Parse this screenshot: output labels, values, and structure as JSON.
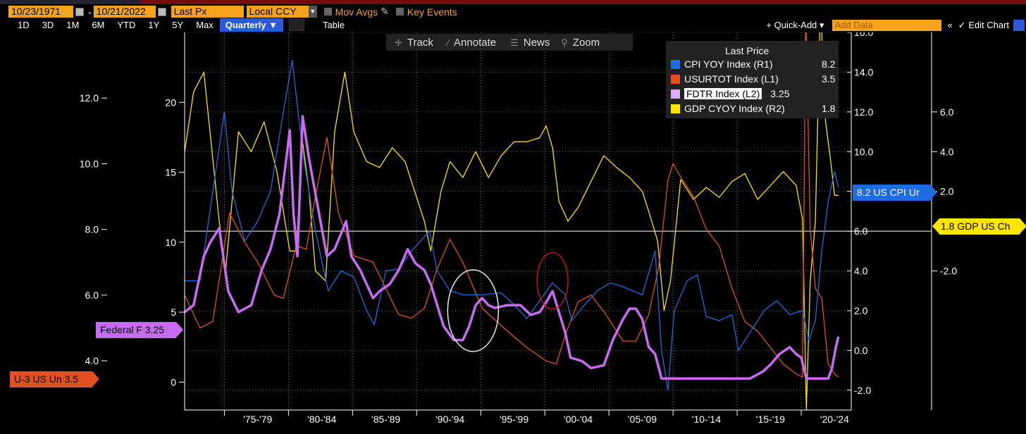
{
  "toolbar_top": {
    "start_date": "10/23/1971",
    "end_date": "10/21/2022",
    "field": "Last Px",
    "currency": "Local CCY",
    "mov_avgs": "Mov Avgs",
    "key_events": "Key Events"
  },
  "ranges": [
    "1D",
    "3D",
    "1M",
    "6M",
    "YTD",
    "1Y",
    "5Y",
    "Max"
  ],
  "period": "Quarterly",
  "table_label": "Table",
  "quick_add": "+ Quick-Add",
  "add_data_placeholder": "Add Data",
  "edit_chart": "Edit Chart",
  "chart_tools": [
    "Track",
    "Annotate",
    "News",
    "Zoom"
  ],
  "legend": {
    "title": "Last Price",
    "items": [
      {
        "name": "CPI YOY Index  (R1)",
        "value": "8.2",
        "color": "#1f6be0"
      },
      {
        "name": "USURTOT Index  (L1)",
        "value": "3.5",
        "color": "#e25022"
      },
      {
        "name": "FDTR Index  (L2)",
        "value": "3.25",
        "color": "#d9aef5"
      },
      {
        "name": "GDP CYOY Index  (R2)",
        "value": "1.8",
        "color": "#ffe500"
      }
    ]
  },
  "tags": {
    "cpi": "8.2 US CPI Ur",
    "gdp": "1.8 GDP US Ch",
    "fed": "Federal F 3.25",
    "unemp": "U-3 US Un 3.5"
  },
  "chart_data": {
    "type": "line",
    "x_ticks": [
      "'75-'79",
      "'80-'84",
      "'85-'89",
      "'90-'94",
      "'95-'99",
      "'00-'04",
      "'05-'09",
      "'10-'14",
      "'15-'19",
      "'20-'24"
    ],
    "axes": {
      "L1": {
        "ticks": [
          "12.0",
          "10.0",
          "8.0",
          "6.0",
          "4.0"
        ],
        "range": [
          2.5,
          14.0
        ]
      },
      "L2": {
        "ticks": [
          "20",
          "15",
          "10",
          "5",
          "0"
        ],
        "range": [
          -2.0,
          25.0
        ]
      },
      "R1": {
        "ticks": [
          "16.0",
          "14.0",
          "12.0",
          "10.0",
          "8.0",
          "6.0",
          "4.0",
          "2.0",
          "0.0",
          "-2.0"
        ],
        "range": [
          -3.0,
          16.0
        ]
      },
      "R2": {
        "ticks": [
          "6.0",
          "4.0",
          "2.0",
          "-2.0"
        ],
        "range": [
          -9.0,
          10.0
        ]
      }
    },
    "series": [
      {
        "name": "FDTR Index (L2)",
        "axis": "L2",
        "color": "#c76cf0",
        "x": [
          1971.8,
          1972.5,
          1973.3,
          1973.8,
          1974.5,
          1975.2,
          1976.0,
          1977.0,
          1977.8,
          1978.5,
          1979.2,
          1980.0,
          1980.3,
          1980.6,
          1981.0,
          1981.5,
          1981.9,
          1982.3,
          1982.9,
          1983.5,
          1984.4,
          1984.8,
          1985.5,
          1986.5,
          1987.0,
          1987.8,
          1988.5,
          1989.2,
          1989.8,
          1990.5,
          1991.0,
          1991.5,
          1992.0,
          1992.8,
          1993.5,
          1994.0,
          1994.5,
          1995.0,
          1995.5,
          1996.0,
          1997.0,
          1998.0,
          1998.8,
          1999.5,
          2000.0,
          2000.5,
          2001.0,
          2001.5,
          2001.9,
          2002.8,
          2003.5,
          2004.5,
          2005.2,
          2006.0,
          2006.5,
          2007.0,
          2007.5,
          2008.0,
          2008.5,
          2009.0,
          2010.0,
          2012.0,
          2014.0,
          2015.9,
          2016.9,
          2017.5,
          2018.2,
          2019.0,
          2019.5,
          2019.9,
          2020.1,
          2020.3,
          2021.0,
          2022.0,
          2022.3,
          2022.6,
          2022.8
        ],
        "y": [
          5.0,
          5.5,
          9.0,
          10.0,
          11.0,
          6.5,
          5.0,
          5.5,
          8.0,
          9.5,
          12.0,
          18.0,
          12.0,
          9.0,
          19.0,
          16.0,
          14.0,
          12.0,
          9.0,
          9.5,
          11.5,
          9.0,
          8.0,
          6.0,
          6.5,
          7.0,
          8.0,
          9.5,
          8.5,
          8.0,
          7.0,
          5.5,
          4.0,
          3.0,
          3.0,
          4.0,
          5.5,
          6.0,
          5.5,
          5.3,
          5.5,
          5.5,
          4.8,
          5.0,
          5.7,
          6.5,
          5.0,
          3.5,
          1.75,
          1.5,
          1.0,
          1.2,
          3.0,
          4.5,
          5.25,
          5.25,
          4.5,
          2.5,
          2.0,
          0.25,
          0.25,
          0.25,
          0.25,
          0.25,
          0.75,
          1.25,
          2.0,
          2.5,
          2.0,
          1.75,
          1.0,
          0.25,
          0.25,
          0.25,
          1.0,
          2.5,
          3.25
        ]
      },
      {
        "name": "USURTOT Index (L1)",
        "axis": "L1",
        "color": "#e25022",
        "x": [
          1971.8,
          1973.0,
          1974.0,
          1975.3,
          1976.5,
          1977.5,
          1978.8,
          1979.5,
          1980.5,
          1981.3,
          1982.0,
          1982.9,
          1983.8,
          1985.0,
          1986.5,
          1988.5,
          1989.5,
          1990.5,
          1991.5,
          1992.5,
          1993.5,
          1995.0,
          1997.0,
          1998.5,
          2000.0,
          2000.8,
          2001.5,
          2002.5,
          2003.5,
          2004.5,
          2006.0,
          2007.0,
          2008.0,
          2008.8,
          2009.5,
          2009.9,
          2010.5,
          2011.5,
          2012.5,
          2013.5,
          2014.5,
          2015.5,
          2016.5,
          2017.5,
          2018.5,
          2019.5,
          2020.0,
          2020.25,
          2020.4,
          2020.6,
          2021.0,
          2021.5,
          2022.0,
          2022.5,
          2022.8
        ],
        "y": [
          6.0,
          5.0,
          5.2,
          8.5,
          7.6,
          7.0,
          6.0,
          5.9,
          7.5,
          7.4,
          9.0,
          10.8,
          8.5,
          7.2,
          7.0,
          5.4,
          5.3,
          5.6,
          6.8,
          7.7,
          7.0,
          5.6,
          4.9,
          4.4,
          4.0,
          3.9,
          4.8,
          5.8,
          6.0,
          5.5,
          4.6,
          4.6,
          5.4,
          6.9,
          9.5,
          10.0,
          9.6,
          9.0,
          8.0,
          7.5,
          6.2,
          5.2,
          4.9,
          4.4,
          3.9,
          3.6,
          3.5,
          14.7,
          12.0,
          8.0,
          6.2,
          5.9,
          3.9,
          3.6,
          3.5
        ]
      },
      {
        "name": "CPI YOY Index (R1)",
        "axis": "R1",
        "color": "#1f6be0",
        "x": [
          1971.8,
          1973.0,
          1974.0,
          1974.9,
          1975.5,
          1976.5,
          1977.5,
          1978.5,
          1979.5,
          1980.2,
          1981.0,
          1982.0,
          1983.0,
          1984.0,
          1985.0,
          1986.0,
          1986.6,
          1987.5,
          1988.5,
          1989.5,
          1990.9,
          1991.5,
          1992.5,
          1993.5,
          1995.0,
          1996.5,
          1997.5,
          1998.5,
          1999.5,
          2000.5,
          2001.5,
          2002.0,
          2003.0,
          2004.0,
          2005.0,
          2006.0,
          2007.5,
          2008.5,
          2009.0,
          2009.5,
          2010.0,
          2011.0,
          2011.8,
          2012.5,
          2013.5,
          2014.5,
          2015.0,
          2016.0,
          2017.0,
          2018.0,
          2019.0,
          2020.0,
          2020.5,
          2021.0,
          2021.5,
          2022.0,
          2022.5,
          2022.8
        ],
        "y": [
          3.5,
          3.5,
          8.0,
          12.0,
          8.0,
          5.5,
          6.5,
          8.0,
          12.0,
          14.6,
          10.0,
          6.0,
          3.0,
          4.0,
          3.7,
          2.0,
          1.3,
          4.0,
          4.1,
          5.0,
          6.0,
          4.0,
          3.0,
          2.8,
          2.8,
          2.9,
          2.3,
          1.6,
          2.5,
          3.4,
          2.8,
          1.5,
          2.3,
          3.0,
          3.4,
          3.2,
          2.8,
          5.0,
          0.0,
          -2.0,
          2.0,
          3.5,
          3.8,
          1.7,
          1.5,
          1.8,
          0.0,
          1.0,
          2.0,
          2.5,
          1.8,
          2.0,
          0.5,
          1.5,
          5.0,
          7.5,
          9.0,
          8.2
        ]
      },
      {
        "name": "GDP CYOY Index (R2)",
        "axis": "R2",
        "color": "#ffe500",
        "x": [
          1971.8,
          1972.5,
          1973.3,
          1974.5,
          1975.0,
          1976.0,
          1977.0,
          1978.0,
          1979.0,
          1980.0,
          1980.5,
          1981.0,
          1981.5,
          1982.0,
          1982.8,
          1983.5,
          1984.3,
          1985.0,
          1986.0,
          1987.0,
          1988.0,
          1989.0,
          1990.0,
          1990.5,
          1991.0,
          1991.8,
          1992.5,
          1993.5,
          1994.5,
          1995.5,
          1996.5,
          1997.5,
          1998.5,
          1999.5,
          2000.0,
          2000.5,
          2001.0,
          2001.7,
          2002.5,
          2003.5,
          2004.5,
          2005.5,
          2006.5,
          2007.5,
          2008.0,
          2008.7,
          2009.2,
          2009.7,
          2010.5,
          2011.5,
          2012.5,
          2013.5,
          2014.5,
          2015.5,
          2016.5,
          2017.5,
          2018.5,
          2019.5,
          2020.0,
          2020.3,
          2020.6,
          2021.0,
          2021.4,
          2021.8,
          2022.2,
          2022.5,
          2022.8
        ],
        "y": [
          4.0,
          7.0,
          8.0,
          0.5,
          -2.0,
          5.0,
          4.0,
          5.5,
          3.0,
          -1.0,
          -1.0,
          4.5,
          2.0,
          -2.0,
          -2.5,
          5.0,
          8.0,
          5.0,
          3.5,
          3.2,
          4.2,
          3.5,
          1.5,
          0.5,
          -1.0,
          2.0,
          3.5,
          2.7,
          4.0,
          2.7,
          3.8,
          4.5,
          4.5,
          4.7,
          5.3,
          4.2,
          1.5,
          0.5,
          1.2,
          2.5,
          3.8,
          3.2,
          2.7,
          2.0,
          1.0,
          -0.5,
          -4.0,
          -2.5,
          2.6,
          1.6,
          2.2,
          1.7,
          2.5,
          2.9,
          1.6,
          2.3,
          3.0,
          2.3,
          0.6,
          -9.0,
          -2.5,
          0.5,
          12.0,
          5.5,
          3.5,
          1.8,
          1.8
        ]
      }
    ],
    "horizontal_line": {
      "axis": "R2",
      "value": 0.0,
      "color": "#ffffff"
    },
    "annotations": [
      {
        "shape": "ellipse",
        "center_year": 1994.3,
        "center_value_R1": 2.0,
        "color": "#e8e8e8"
      },
      {
        "shape": "ellipse",
        "center_year": 2000.5,
        "center_value_R1": 3.5,
        "color": "#c0151a"
      }
    ],
    "grid": "dotted vertical and horizontal",
    "legend_position": "top-right"
  }
}
